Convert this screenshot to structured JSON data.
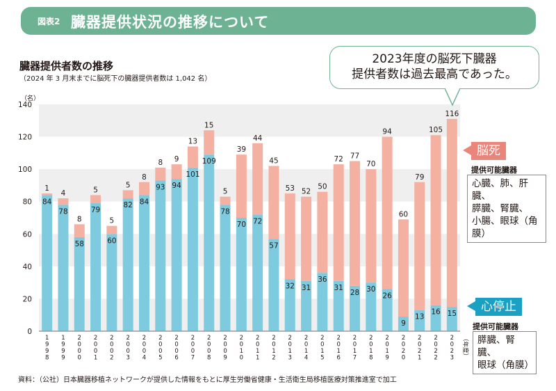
{
  "header": {
    "figure_label": "図表2",
    "title": "臓器提供状況の推移について",
    "band_color": "#6db293"
  },
  "callout": {
    "line1": "2023年度の脳死下臓器",
    "line2": "提供者数は過去最高であった。"
  },
  "legend": {
    "brain_death": {
      "tag": "脳死",
      "organs_label": "提供可能臓器",
      "organs": "心臓、肺、肝臓、\n膵臓、腎臓、\n小腸、眼球（角膜）",
      "color": "#f4b0a0",
      "tag_color": "#e9857b"
    },
    "cardiac_arrest": {
      "tag": "心停止",
      "organs_label": "提供可能臓器",
      "organs": "膵臓、腎臓、\n眼球（角膜）",
      "color": "#7ecbe0",
      "tag_color": "#1aa0c3"
    }
  },
  "footer": {
    "source": "資料：（公社）日本臓器移植ネットワークが提供した情報をもとに厚生労働省健康・生活衛生局移植医療対策推進室で加工"
  },
  "chart_data": {
    "type": "bar",
    "stacked": true,
    "title": "臓器提供者数の推移",
    "subtitle": "（2024 年 3 月末までに脳死下の臓器提供者数は 1,042 名）",
    "xlabel": "（年度）",
    "ylabel": "（名）",
    "ylim": [
      0,
      140
    ],
    "yticks": [
      0,
      20,
      40,
      60,
      80,
      100,
      120,
      140
    ],
    "grid": "alternating horizontal bands",
    "legend_position": "right",
    "categories": [
      "1998",
      "1999",
      "2000",
      "2001",
      "2002",
      "2003",
      "2004",
      "2005",
      "2006",
      "2007",
      "2008",
      "2009",
      "2010",
      "2011",
      "2012",
      "2013",
      "2014",
      "2015",
      "2016",
      "2017",
      "2018",
      "2019",
      "2020",
      "2021",
      "2022",
      "2023"
    ],
    "series": [
      {
        "name": "心停止",
        "color": "#7ecbe0",
        "values": [
          84,
          78,
          58,
          79,
          60,
          82,
          84,
          93,
          94,
          101,
          109,
          78,
          70,
          72,
          57,
          32,
          31,
          36,
          31,
          28,
          30,
          26,
          9,
          13,
          16,
          15
        ]
      },
      {
        "name": "脳死",
        "color": "#f4b0a0",
        "values": [
          1,
          4,
          8,
          5,
          5,
          5,
          8,
          8,
          9,
          13,
          15,
          5,
          39,
          44,
          45,
          53,
          52,
          50,
          72,
          77,
          70,
          94,
          60,
          79,
          105,
          116
        ]
      }
    ]
  }
}
